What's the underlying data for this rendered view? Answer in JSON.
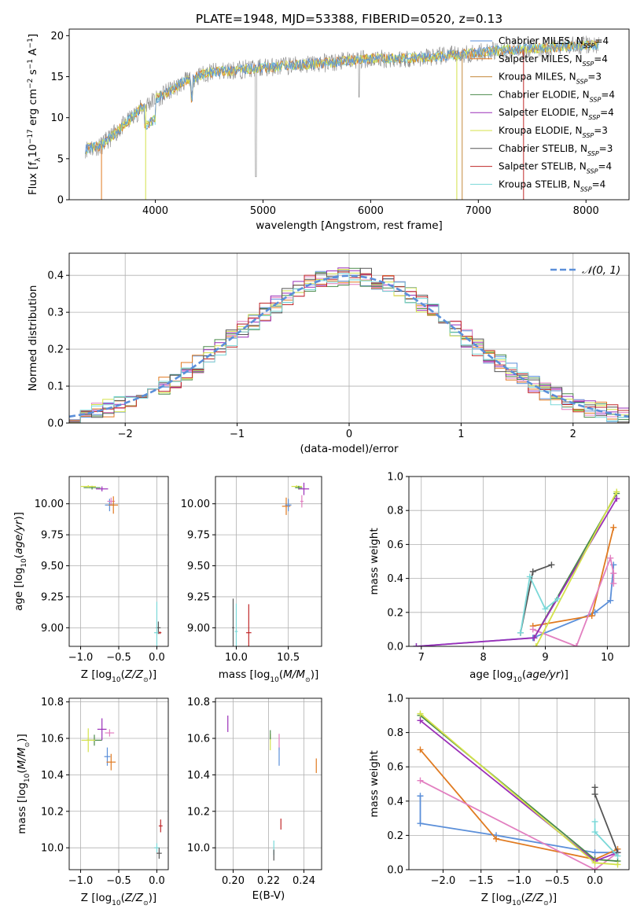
{
  "colors": {
    "chabrier_miles": "#5b8fd9",
    "salpeter_miles": "#e07a20",
    "kroupa_miles": "#c58a3c",
    "chabrier_elodie": "#4a8a4a",
    "salpeter_elodie": "#9a2fb8",
    "kroupa_elodie": "#d4e24a",
    "chabrier_stelib": "#555555",
    "salpeter_stelib": "#c0282a",
    "kroupa_stelib": "#7ad8d8",
    "pink": "#e27fc0",
    "gray": "#888888"
  },
  "chart_data": [
    {
      "id": "spectrum",
      "type": "line",
      "title": "PLATE=1948, MJD=53388, FIBERID=0520, z=0.13",
      "xlabel": "wavelength [Angstrom, rest frame]",
      "ylabel": "Flux [f_λ10^-17 erg cm^-2 s^-1 A^-1]",
      "xlim": [
        3200,
        8400
      ],
      "ylim": [
        0,
        20.8
      ],
      "xticks": [
        4000,
        5000,
        6000,
        7000,
        8000
      ],
      "yticks": [
        0,
        5,
        10,
        15,
        20
      ],
      "legend": [
        "Chabrier MILES, N_SSP=4",
        "Salpeter MILES, N_SSP=4",
        "Kroupa MILES, N_SSP=3",
        "Chabrier ELODIE, N_SSP=4",
        "Salpeter ELODIE, N_SSP=4",
        "Kroupa ELODIE, N_SSP=3",
        "Chabrier STELIB, N_SSP=3",
        "Salpeter STELIB, N_SSP=4",
        "Kroupa STELIB, N_SSP=4"
      ],
      "legend_position": "right",
      "continuum": {
        "x": [
          3350,
          3500,
          3700,
          3900,
          4100,
          4300,
          4500,
          4800,
          5100,
          5400,
          5700,
          6000,
          6300,
          6600,
          6900,
          7200,
          7500,
          7800,
          8100
        ],
        "y": [
          6.2,
          6.6,
          9.0,
          11.5,
          13.0,
          14.6,
          15.5,
          15.9,
          16.2,
          16.5,
          16.8,
          17.2,
          17.2,
          17.4,
          17.8,
          18.2,
          18.4,
          18.7,
          18.9
        ]
      }
    },
    {
      "id": "residuals",
      "type": "histogram",
      "xlabel": "(data-model)/error",
      "ylabel": "Normed distribution",
      "xlim": [
        -2.5,
        2.5
      ],
      "ylim": [
        0,
        0.46
      ],
      "xticks": [
        -2,
        -1,
        0,
        1,
        2
      ],
      "yticks": [
        0.0,
        0.1,
        0.2,
        0.3,
        0.4
      ],
      "grid": true,
      "legend": [
        "𝒩(0, 1)"
      ],
      "legend_position": "top-right"
    },
    {
      "id": "age_vs_Z",
      "type": "scatter",
      "xlabel": "Z [log10(Z/Z⊙)]",
      "ylabel": "age  [log10(age/yr)]",
      "xlim": [
        -1.15,
        0.15
      ],
      "ylim": [
        8.85,
        10.22
      ],
      "xticks": [
        -1.0,
        -0.5,
        0.0
      ],
      "yticks": [
        9.0,
        9.25,
        9.5,
        9.75,
        10.0
      ],
      "grid": true,
      "points": [
        {
          "c": "chabrier_elodie",
          "x": -0.85,
          "y": 10.13,
          "xe": 0.22,
          "ye": 0.03
        },
        {
          "c": "kroupa_elodie",
          "x": -0.9,
          "y": 10.14,
          "xe": 0.2,
          "ye": 0.02
        },
        {
          "c": "salpeter_elodie",
          "x": -0.72,
          "y": 10.12,
          "xe": 0.16,
          "ye": 0.04
        },
        {
          "c": "chabrier_miles",
          "x": -0.62,
          "y": 9.99,
          "xe": 0.12,
          "ye": 0.1
        },
        {
          "c": "pink",
          "x": -0.6,
          "y": 10.02,
          "xe": 0.1,
          "ye": 0.06
        },
        {
          "c": "salpeter_miles",
          "x": -0.57,
          "y": 9.99,
          "xe": 0.12,
          "ye": 0.14
        },
        {
          "c": "chabrier_stelib",
          "x": 0.02,
          "y": 9.0,
          "xe": 0.06,
          "ye": 0.1
        },
        {
          "c": "kroupa_stelib",
          "x": 0.0,
          "y": 8.96,
          "xe": 0.07,
          "ye": 0.5
        },
        {
          "c": "salpeter_stelib",
          "x": 0.04,
          "y": 8.96,
          "xe": 0.04,
          "ye": 0.02
        }
      ]
    },
    {
      "id": "age_vs_mass",
      "type": "scatter",
      "xlabel": "mass [log10(M/M⊙)]",
      "xlim": [
        9.8,
        10.82
      ],
      "ylim": [
        8.85,
        10.22
      ],
      "xticks": [
        10.0,
        10.5
      ],
      "yticks": [
        9.0,
        9.25,
        9.5,
        9.75,
        10.0
      ],
      "grid": true,
      "points": [
        {
          "c": "salpeter_miles",
          "x": 10.48,
          "y": 9.98,
          "xe": 0.08,
          "ye": 0.14
        },
        {
          "c": "chabrier_miles",
          "x": 10.5,
          "y": 9.99,
          "xe": 0.06,
          "ye": 0.1
        },
        {
          "c": "pink",
          "x": 10.63,
          "y": 10.02,
          "xe": 0.03,
          "ye": 0.1
        },
        {
          "c": "kroupa_elodie",
          "x": 10.58,
          "y": 10.14,
          "xe": 0.1,
          "ye": 0.02
        },
        {
          "c": "chabrier_elodie",
          "x": 10.6,
          "y": 10.13,
          "xe": 0.07,
          "ye": 0.03
        },
        {
          "c": "salpeter_elodie",
          "x": 10.65,
          "y": 10.12,
          "xe": 0.1,
          "ye": 0.1
        },
        {
          "c": "chabrier_stelib",
          "x": 9.97,
          "y": 9.0,
          "xe": 0.02,
          "ye": 0.47
        },
        {
          "c": "kroupa_stelib",
          "x": 10.0,
          "y": 8.97,
          "xe": 0.03,
          "ye": 0.45
        },
        {
          "c": "salpeter_stelib",
          "x": 10.12,
          "y": 8.96,
          "xe": 0.05,
          "ye": 0.46
        }
      ]
    },
    {
      "id": "weight_vs_age",
      "type": "line",
      "xlabel": "age  [log10(age/yr)]",
      "ylabel": "mass weight",
      "xlim": [
        6.8,
        10.35
      ],
      "ylim": [
        0,
        1.0
      ],
      "xticks": [
        7,
        8,
        9,
        10
      ],
      "yticks": [
        0.0,
        0.2,
        0.4,
        0.6,
        0.8,
        1.0
      ],
      "grid": true,
      "series": [
        {
          "c": "chabrier_miles",
          "x": [
            6.92,
            8.8,
            9.8,
            10.05,
            10.1
          ],
          "y": [
            0.0,
            0.05,
            0.2,
            0.27,
            0.48
          ]
        },
        {
          "c": "salpeter_miles",
          "x": [
            8.8,
            9.75,
            10.1
          ],
          "y": [
            0.12,
            0.18,
            0.7
          ]
        },
        {
          "c": "pink",
          "x": [
            8.8,
            9.5,
            10.05,
            10.1,
            10.1
          ],
          "y": [
            0.1,
            0.0,
            0.52,
            0.43,
            0.37
          ]
        },
        {
          "c": "chabrier_elodie",
          "x": [
            8.82,
            10.15
          ],
          "y": [
            0.05,
            0.9
          ]
        },
        {
          "c": "salpeter_elodie",
          "x": [
            6.92,
            8.82,
            10.15
          ],
          "y": [
            0.0,
            0.05,
            0.87
          ]
        },
        {
          "c": "kroupa_elodie",
          "x": [
            8.85,
            10.15
          ],
          "y": [
            0.0,
            0.91
          ]
        },
        {
          "c": "chabrier_stelib",
          "x": [
            8.6,
            8.8,
            9.1
          ],
          "y": [
            0.08,
            0.44,
            0.48
          ]
        },
        {
          "c": "kroupa_stelib",
          "x": [
            8.6,
            8.75,
            9.0,
            9.2
          ],
          "y": [
            0.08,
            0.41,
            0.22,
            0.28
          ]
        }
      ]
    },
    {
      "id": "mass_vs_Z",
      "type": "scatter",
      "xlabel": "Z [log10(Z/Z⊙)]",
      "ylabel": "mass [log10(M/M⊙)]",
      "xlim": [
        -1.15,
        0.15
      ],
      "ylim": [
        9.88,
        10.82
      ],
      "xticks": [
        -1.0,
        -0.5,
        0.0
      ],
      "yticks": [
        10.0,
        10.2,
        10.4,
        10.6,
        10.8
      ],
      "grid": true,
      "points": [
        {
          "c": "chabrier_elodie",
          "x": -0.82,
          "y": 10.59,
          "xe": 0.2,
          "ye": 0.06
        },
        {
          "c": "kroupa_elodie",
          "x": -0.9,
          "y": 10.59,
          "xe": 0.18,
          "ye": 0.13
        },
        {
          "c": "salpeter_elodie",
          "x": -0.72,
          "y": 10.65,
          "xe": 0.12,
          "ye": 0.12
        },
        {
          "c": "pink",
          "x": -0.62,
          "y": 10.63,
          "xe": 0.12,
          "ye": 0.04
        },
        {
          "c": "chabrier_miles",
          "x": -0.65,
          "y": 10.5,
          "xe": 0.08,
          "ye": 0.1
        },
        {
          "c": "salpeter_miles",
          "x": -0.6,
          "y": 10.47,
          "xe": 0.12,
          "ye": 0.09
        },
        {
          "c": "salpeter_stelib",
          "x": 0.05,
          "y": 10.12,
          "xe": 0.05,
          "ye": 0.07
        },
        {
          "c": "kroupa_stelib",
          "x": 0.0,
          "y": 10.0,
          "xe": 0.07,
          "ye": 0.05
        },
        {
          "c": "chabrier_stelib",
          "x": 0.03,
          "y": 9.97,
          "xe": 0.07,
          "ye": 0.06
        }
      ]
    },
    {
      "id": "mass_vs_ebv",
      "type": "scatter",
      "xlabel": "E(B-V)",
      "xlim": [
        0.19,
        0.25
      ],
      "ylim": [
        9.88,
        10.82
      ],
      "xticks": [
        0.2,
        0.22,
        0.24
      ],
      "yticks": [
        10.0,
        10.2,
        10.4,
        10.6,
        10.8
      ],
      "grid": true,
      "points": [
        {
          "c": "salpeter_elodie",
          "x": 0.197,
          "y": 10.68,
          "ye": 0.09
        },
        {
          "c": "kroupa_elodie",
          "x": 0.221,
          "y": 10.58,
          "ye": 0.09
        },
        {
          "c": "chabrier_elodie",
          "x": 0.221,
          "y": 10.62,
          "ye": 0.05
        },
        {
          "c": "pink",
          "x": 0.226,
          "y": 10.58,
          "ye": 0.09
        },
        {
          "c": "chabrier_miles",
          "x": 0.226,
          "y": 10.5,
          "ye": 0.1
        },
        {
          "c": "salpeter_miles",
          "x": 0.247,
          "y": 10.45,
          "ye": 0.08
        },
        {
          "c": "salpeter_stelib",
          "x": 0.227,
          "y": 10.13,
          "ye": 0.06
        },
        {
          "c": "kroupa_stelib",
          "x": 0.223,
          "y": 10.0,
          "ye": 0.08
        },
        {
          "c": "chabrier_stelib",
          "x": 0.223,
          "y": 9.96,
          "ye": 0.06
        }
      ]
    },
    {
      "id": "weight_vs_Z",
      "type": "line",
      "xlabel": "Z [log10(Z/Z⊙)]",
      "ylabel": "mass weight",
      "xlim": [
        -2.45,
        0.45
      ],
      "ylim": [
        0,
        1.0
      ],
      "xticks": [
        -2.0,
        -1.5,
        -1.0,
        -0.5,
        0.0
      ],
      "yticks": [
        0.0,
        0.2,
        0.4,
        0.6,
        0.8,
        1.0
      ],
      "grid": true,
      "series": [
        {
          "c": "chabrier_miles",
          "x": [
            -2.3,
            -2.3,
            -1.3,
            0.0,
            0.3
          ],
          "y": [
            0.43,
            0.27,
            0.2,
            0.1,
            0.1
          ]
        },
        {
          "c": "salpeter_miles",
          "x": [
            -2.3,
            -1.3,
            0.0,
            0.3
          ],
          "y": [
            0.7,
            0.18,
            0.06,
            0.12
          ]
        },
        {
          "c": "pink",
          "x": [
            -2.3,
            0.0,
            0.3
          ],
          "y": [
            0.52,
            0.0,
            0.1
          ]
        },
        {
          "c": "chabrier_elodie",
          "x": [
            -2.3,
            0.0,
            0.3
          ],
          "y": [
            0.9,
            0.06,
            0.05
          ]
        },
        {
          "c": "salpeter_elodie",
          "x": [
            -2.3,
            0.0,
            0.3
          ],
          "y": [
            0.87,
            0.05,
            0.1
          ]
        },
        {
          "c": "kroupa_elodie",
          "x": [
            -2.3,
            0.0,
            0.3
          ],
          "y": [
            0.91,
            0.04,
            0.03
          ]
        },
        {
          "c": "chabrier_stelib",
          "x": [
            0.0,
            0.0,
            0.3
          ],
          "y": [
            0.48,
            0.44,
            0.1
          ]
        },
        {
          "c": "kroupa_stelib",
          "x": [
            0.0,
            0.0,
            0.3
          ],
          "y": [
            0.28,
            0.22,
            0.08
          ]
        }
      ]
    }
  ]
}
